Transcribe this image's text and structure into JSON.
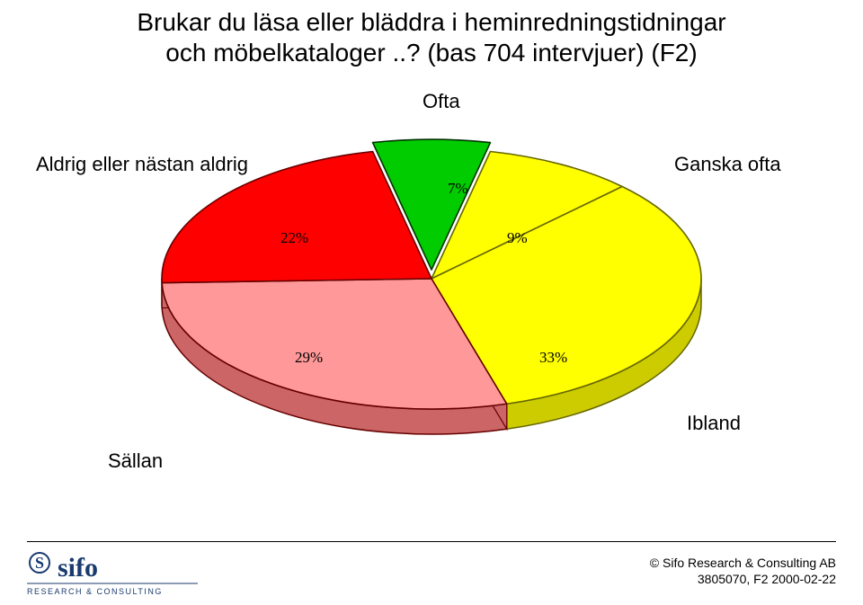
{
  "title": {
    "line1": "Brukar du läsa eller bläddra i heminredningstidningar",
    "line2": "och möbelkataloger ..? (bas 704 intervjuer)   (F2)",
    "fontsize": 28
  },
  "chart": {
    "type": "pie",
    "explode_slices": [
      0
    ],
    "slices": [
      {
        "label": "Ofta",
        "value": 7,
        "pct_text": "7%",
        "fill": "#00cc00",
        "side_fill": "#009900",
        "edge": "#003300"
      },
      {
        "label": "Ganska ofta",
        "value": 9,
        "pct_text": "9%",
        "fill": "#ffff00",
        "side_fill": "#cccc00",
        "edge": "#666600"
      },
      {
        "label": "Ibland",
        "value": 33,
        "pct_text": "33%",
        "fill": "#ffff00",
        "side_fill": "#cccc00",
        "edge": "#666600"
      },
      {
        "label": "Sällan",
        "value": 29,
        "pct_text": "29%",
        "fill": "#ff9999",
        "side_fill": "#cc6666",
        "edge": "#660000"
      },
      {
        "label": "Aldrig eller nästan aldrig",
        "value": 22,
        "pct_text": "22%",
        "fill": "#ff0000",
        "side_fill": "#bb0000",
        "edge": "#660000"
      }
    ],
    "pct_fontsize": 17,
    "extlabel_fontsize": 22,
    "background_color": "#ffffff"
  },
  "footer": {
    "brand_top": "sifo",
    "brand_bottom": "RESEARCH & CONSULTING",
    "copyright": "© Sifo Research & Consulting AB",
    "ref": "3805070, F2   2000-02-22",
    "fontsize": 14,
    "brand_color": "#1a3a6e"
  }
}
